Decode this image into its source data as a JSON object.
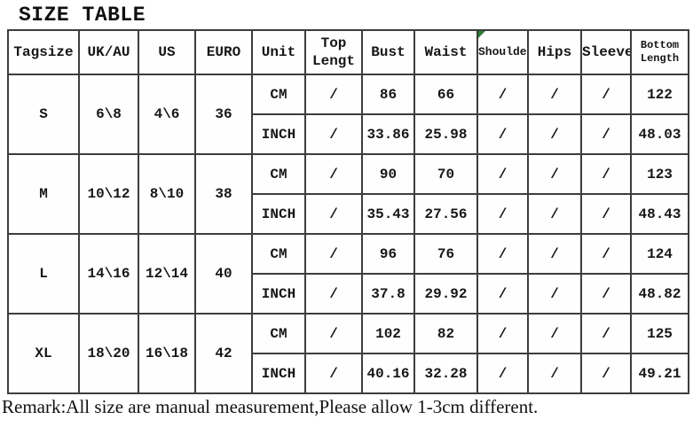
{
  "title": "SIZE TABLE",
  "columns": [
    "Tagsize",
    "UK/AU",
    "US",
    "EURO",
    "Unit",
    "Top Lengt",
    "Bust",
    "Waist",
    "Shoulder",
    "Hips",
    "Sleeve",
    "Bottom Length"
  ],
  "unit_labels": [
    "CM",
    "INCH"
  ],
  "sizes": [
    {
      "tag": "S",
      "uk_au": "6\\8",
      "us": "4\\6",
      "euro": "36",
      "units": [
        "CM",
        "INCH"
      ],
      "cm": [
        "/",
        "86",
        "66",
        "/",
        "/",
        "/",
        "122"
      ],
      "inch": [
        "/",
        "33.86",
        "25.98",
        "/",
        "/",
        "/",
        "48.03"
      ]
    },
    {
      "tag": "M",
      "uk_au": "10\\12",
      "us": "8\\10",
      "euro": "38",
      "units": [
        "CM",
        "INCH"
      ],
      "cm": [
        "/",
        "90",
        "70",
        "/",
        "/",
        "/",
        "123"
      ],
      "inch": [
        "/",
        "35.43",
        "27.56",
        "/",
        "/",
        "/",
        "48.43"
      ]
    },
    {
      "tag": "L",
      "uk_au": "14\\16",
      "us": "12\\14",
      "euro": "40",
      "units": [
        "CM",
        "INCH"
      ],
      "cm": [
        "/",
        "96",
        "76",
        "/",
        "/",
        "/",
        "124"
      ],
      "inch": [
        "/",
        "37.8",
        "29.92",
        "/",
        "/",
        "/",
        "48.82"
      ]
    },
    {
      "tag": "XL",
      "uk_au": "18\\20",
      "us": "16\\18",
      "euro": "42",
      "units": [
        "CM",
        "INCH"
      ],
      "cm": [
        "/",
        "102",
        "82",
        "/",
        "/",
        "/",
        "125"
      ],
      "inch": [
        "/",
        "40.16",
        "32.28",
        "/",
        "/",
        "/",
        "49.21"
      ]
    }
  ],
  "remark": "Remark:All size are manual measurement,Please allow 1-3cm different.",
  "colors": {
    "background": "#ffffff",
    "border": "#3d3d3d",
    "text": "#161616",
    "marker_green": "#2e7d32"
  }
}
